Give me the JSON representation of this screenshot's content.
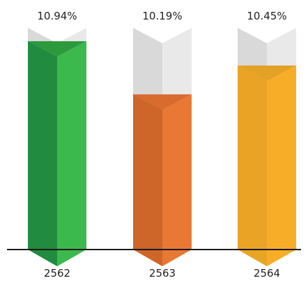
{
  "chart_data": {
    "type": "bar",
    "categories": [
      "2562",
      "2563",
      "2564"
    ],
    "values": [
      10.94,
      10.19,
      10.45
    ],
    "value_labels": [
      "10.94%",
      "10.19%",
      "10.45%"
    ],
    "fill_levels": [
      0.94,
      0.7,
      0.83
    ],
    "colors": [
      {
        "left": "#218b3f",
        "right": "#3cb94d",
        "top": "#2c9a3c"
      },
      {
        "left": "#cd6628",
        "right": "#e97834",
        "top": "#d86b2d"
      },
      {
        "left": "#eaa425",
        "right": "#f8ad29",
        "top": "#e3a126"
      }
    ],
    "bar_background": {
      "left": "#d9d9d9",
      "right": "#e9e9e9"
    },
    "baseline_color": "#1a1a1a",
    "legend": "none",
    "grid": false
  }
}
